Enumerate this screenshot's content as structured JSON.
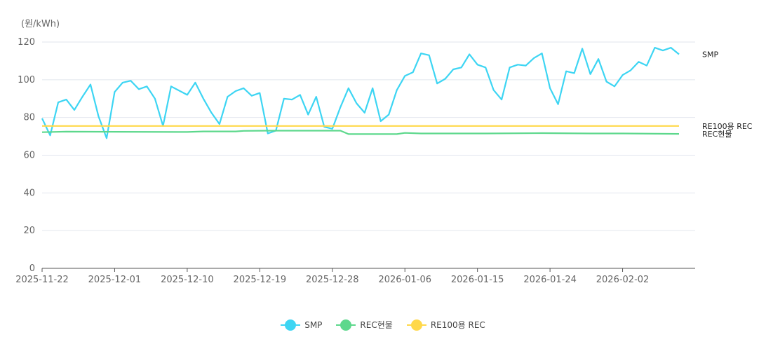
{
  "chart_data": {
    "type": "line",
    "yunit": "(원/kWh)",
    "ylim": [
      0,
      120
    ],
    "yticks": [
      0,
      20,
      40,
      60,
      80,
      100,
      120
    ],
    "x_start": "2025-11-22",
    "x_end": "2026-02-11",
    "xticks": [
      "2025-11-22",
      "2025-12-01",
      "2025-12-10",
      "2025-12-19",
      "2025-12-28",
      "2026-01-06",
      "2026-01-15",
      "2026-01-24",
      "2026-02-02"
    ],
    "grid": true,
    "legend_position": "bottom-center",
    "series": [
      {
        "name": "SMP",
        "color": "#3dd5f3",
        "end_label": "SMP",
        "points": [
          [
            "2025-11-22",
            79.5
          ],
          [
            "2025-11-23",
            70.5
          ],
          [
            "2025-11-24",
            88
          ],
          [
            "2025-11-25",
            89.5
          ],
          [
            "2025-11-26",
            84
          ],
          [
            "2025-11-27",
            91
          ],
          [
            "2025-11-28",
            97.5
          ],
          [
            "2025-11-29",
            80.5
          ],
          [
            "2025-11-30",
            69
          ],
          [
            "2025-12-01",
            93.5
          ],
          [
            "2025-12-02",
            98.5
          ],
          [
            "2025-12-03",
            99.5
          ],
          [
            "2025-12-04",
            95
          ],
          [
            "2025-12-05",
            96.5
          ],
          [
            "2025-12-06",
            90
          ],
          [
            "2025-12-07",
            75.5
          ],
          [
            "2025-12-08",
            96.5
          ],
          [
            "2025-12-10",
            92
          ],
          [
            "2025-12-11",
            98.5
          ],
          [
            "2025-12-12",
            90
          ],
          [
            "2025-12-13",
            82.5
          ],
          [
            "2025-12-14",
            76.5
          ],
          [
            "2025-12-15",
            91
          ],
          [
            "2025-12-16",
            94
          ],
          [
            "2025-12-17",
            95.5
          ],
          [
            "2025-12-18",
            91.5
          ],
          [
            "2025-12-19",
            93
          ],
          [
            "2025-12-20",
            71.5
          ],
          [
            "2025-12-21",
            73
          ],
          [
            "2025-12-22",
            90
          ],
          [
            "2025-12-23",
            89.5
          ],
          [
            "2025-12-24",
            92
          ],
          [
            "2025-12-25",
            81.5
          ],
          [
            "2025-12-26",
            91
          ],
          [
            "2025-12-27",
            75
          ],
          [
            "2025-12-28",
            74
          ],
          [
            "2025-12-29",
            85.5
          ],
          [
            "2025-12-30",
            95.5
          ],
          [
            "2025-12-31",
            87.5
          ],
          [
            "2026-01-01",
            82.5
          ],
          [
            "2026-01-02",
            95.5
          ],
          [
            "2026-01-03",
            78
          ],
          [
            "2026-01-04",
            81.5
          ],
          [
            "2026-01-05",
            94.5
          ],
          [
            "2026-01-06",
            102
          ],
          [
            "2026-01-07",
            104
          ],
          [
            "2026-01-08",
            114
          ],
          [
            "2026-01-09",
            113
          ],
          [
            "2026-01-10",
            98
          ],
          [
            "2026-01-11",
            100.5
          ],
          [
            "2026-01-12",
            105.5
          ],
          [
            "2026-01-13",
            106.5
          ],
          [
            "2026-01-14",
            113.5
          ],
          [
            "2026-01-15",
            108
          ],
          [
            "2026-01-16",
            106.5
          ],
          [
            "2026-01-17",
            94.5
          ],
          [
            "2026-01-18",
            89.5
          ],
          [
            "2026-01-19",
            106.5
          ],
          [
            "2026-01-20",
            108
          ],
          [
            "2026-01-21",
            107.5
          ],
          [
            "2026-01-22",
            111.5
          ],
          [
            "2026-01-23",
            114
          ],
          [
            "2026-01-24",
            95.5
          ],
          [
            "2026-01-25",
            87
          ],
          [
            "2026-01-26",
            104.5
          ],
          [
            "2026-01-27",
            103.5
          ],
          [
            "2026-01-28",
            116.5
          ],
          [
            "2026-01-29",
            103
          ],
          [
            "2026-01-30",
            111
          ],
          [
            "2026-01-31",
            99
          ],
          [
            "2026-02-01",
            96.5
          ],
          [
            "2026-02-02",
            102.5
          ],
          [
            "2026-02-03",
            105
          ],
          [
            "2026-02-04",
            109.5
          ],
          [
            "2026-02-05",
            107.5
          ],
          [
            "2026-02-06",
            117
          ],
          [
            "2026-02-07",
            115.5
          ],
          [
            "2026-02-08",
            117
          ],
          [
            "2026-02-09",
            113.5
          ]
        ]
      },
      {
        "name": "REC현물",
        "color": "#5dd88c",
        "end_label": "REC현물",
        "points": [
          [
            "2025-11-22",
            72.2
          ],
          [
            "2025-11-25",
            72.5
          ],
          [
            "2025-12-01",
            72.4
          ],
          [
            "2025-12-10",
            72.3
          ],
          [
            "2025-12-12",
            72.6
          ],
          [
            "2025-12-16",
            72.6
          ],
          [
            "2025-12-17",
            72.9
          ],
          [
            "2025-12-20",
            73.0
          ],
          [
            "2025-12-28",
            73.0
          ],
          [
            "2025-12-29",
            73.0
          ],
          [
            "2025-12-30",
            71.2
          ],
          [
            "2026-01-05",
            71.2
          ],
          [
            "2026-01-06",
            71.8
          ],
          [
            "2026-01-08",
            71.5
          ],
          [
            "2026-01-16",
            71.5
          ],
          [
            "2026-01-23",
            71.7
          ],
          [
            "2026-01-29",
            71.5
          ],
          [
            "2026-02-02",
            71.5
          ],
          [
            "2026-02-09",
            71.3
          ]
        ]
      },
      {
        "name": "RE100용 REC",
        "color": "#ffd84a",
        "end_label": "RE100용 REC",
        "points": [
          [
            "2025-11-22",
            75.5
          ],
          [
            "2026-02-09",
            75.5
          ]
        ]
      }
    ]
  }
}
